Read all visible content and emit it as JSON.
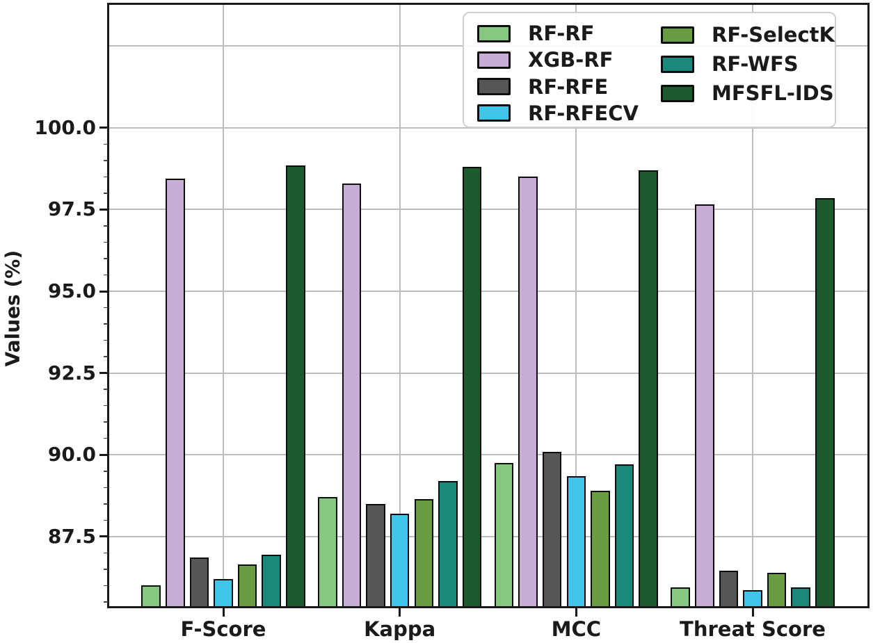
{
  "chart_data": {
    "type": "bar",
    "title": "",
    "ylabel": "Values (%)",
    "xlabel": "",
    "categories": [
      "F-Score",
      "Kappa",
      "MCC",
      "Threat Score"
    ],
    "series": [
      {
        "name": "RF-RF",
        "color": "#85c87f",
        "values": [
          86.0,
          88.7,
          89.75,
          85.95
        ]
      },
      {
        "name": "XGB-RF",
        "color": "#c6aed7",
        "values": [
          98.45,
          98.3,
          98.5,
          97.65
        ]
      },
      {
        "name": "RF-RFE",
        "color": "#565656",
        "values": [
          86.85,
          88.5,
          90.1,
          86.45
        ]
      },
      {
        "name": "RF-RFECV",
        "color": "#3fc5ea",
        "values": [
          86.2,
          88.2,
          89.35,
          85.85
        ]
      },
      {
        "name": "RF-SelectK",
        "color": "#689e41",
        "values": [
          86.65,
          88.65,
          88.9,
          86.4
        ]
      },
      {
        "name": "RF-WFS",
        "color": "#19897c",
        "values": [
          86.95,
          89.2,
          89.7,
          85.95
        ]
      },
      {
        "name": "MFSFL-IDS",
        "color": "#1b5b2d",
        "values": [
          98.85,
          98.8,
          98.7,
          97.85
        ]
      }
    ],
    "ylim": [
      85.35,
      103.8
    ],
    "ytick_values": [
      87.5,
      90.0,
      92.5,
      95.0,
      97.5,
      100.0
    ],
    "ytick_labels": [
      "87.5",
      "90.0",
      "92.5",
      "95.0",
      "97.5",
      "100.0"
    ],
    "gridline_values": [
      87.5,
      90.0,
      92.5,
      95.0,
      97.5,
      100.0,
      102.5
    ],
    "minor_tick_step": 0.5,
    "grid": true,
    "legend_position": "upper-right",
    "legend_columns": [
      [
        "RF-RF",
        "XGB-RF",
        "RF-RFE",
        "RF-RFECV"
      ],
      [
        "RF-SelectK",
        "RF-WFS",
        "MFSFL-IDS"
      ]
    ],
    "bar_edge_color": "#0d0d0d",
    "grid_color": "#bdbdbd",
    "axis_color": "#1a1a1a"
  }
}
